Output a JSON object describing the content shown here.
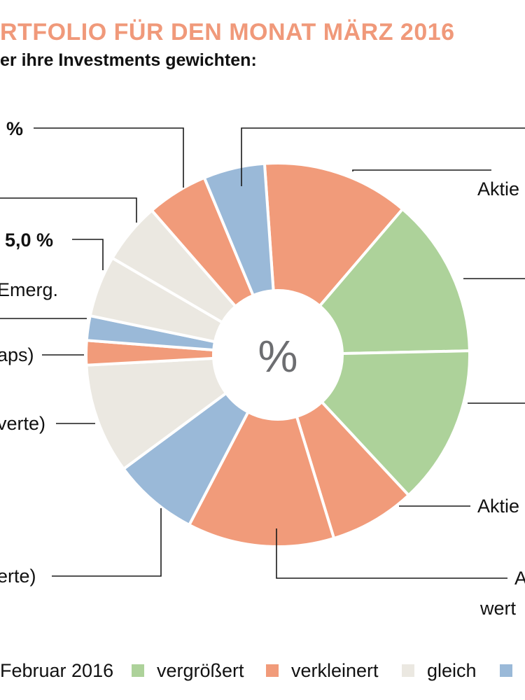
{
  "title": "RTFOLIO FÜR DEN MONAT MÄRZ 2016",
  "subtitle": "er ihre Investments gewichten:",
  "colors": {
    "title": "#f0997a",
    "vergroessert": "#add29a",
    "verkleinert": "#f19b7a",
    "gleich": "#ebe8e1",
    "other": "#9ab9d8",
    "center": "#6d6e71"
  },
  "chart_data": {
    "type": "pie",
    "style": "donut",
    "center_label": "%",
    "slices": [
      {
        "status": "verkleinert",
        "value": 12.0
      },
      {
        "status": "vergroessert",
        "value": 13.0
      },
      {
        "status": "vergroessert",
        "value": 13.0
      },
      {
        "status": "verkleinert",
        "value": 7.0
      },
      {
        "status": "verkleinert",
        "value": 12.0
      },
      {
        "status": "other",
        "value": 7.0
      },
      {
        "status": "gleich",
        "value": 9.0
      },
      {
        "status": "verkleinert",
        "value": 2.0
      },
      {
        "status": "other",
        "value": 2.0
      },
      {
        "status": "gleich",
        "value": 5.0
      },
      {
        "status": "gleich",
        "value": 5.0
      },
      {
        "status": "verkleinert",
        "value": 5.0
      },
      {
        "status": "other",
        "value": 5.0
      }
    ],
    "labels": [
      {
        "key": "top_left",
        "text": "%",
        "bold": true
      },
      {
        "key": "value_50",
        "text": "5,0 %",
        "bold": true
      },
      {
        "key": "emerg",
        "text": "Emerg.",
        "bold": false
      },
      {
        "key": "aps",
        "text": "aps)",
        "bold": false
      },
      {
        "key": "verte",
        "text": "verte)",
        "bold": false
      },
      {
        "key": "erte",
        "text": "erte)",
        "bold": false
      },
      {
        "key": "aktie_top",
        "text": "Aktie",
        "bold": false
      },
      {
        "key": "aktie_mid",
        "text": "Aktie",
        "bold": false
      },
      {
        "key": "a_bottom",
        "text": "A",
        "bold": false
      },
      {
        "key": "wert_bottom",
        "text": "wert",
        "bold": false
      }
    ],
    "legend": [
      {
        "label": "Februar 2016",
        "status": null
      },
      {
        "label": "vergrößert",
        "status": "vergroessert"
      },
      {
        "label": "verkleinert",
        "status": "verkleinert"
      },
      {
        "label": "gleich",
        "status": "gleich"
      },
      {
        "label": "",
        "status": "other"
      }
    ],
    "legend_position": "bottom"
  }
}
